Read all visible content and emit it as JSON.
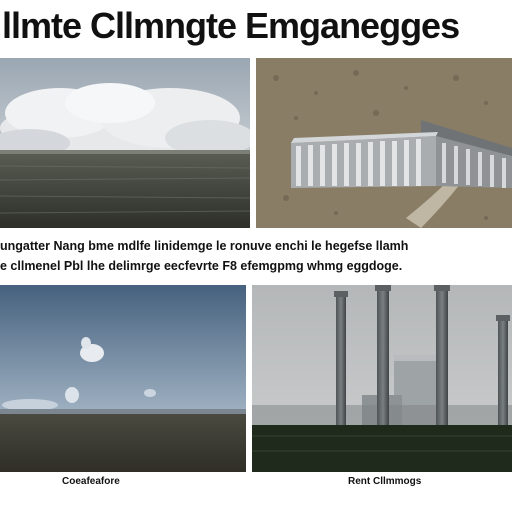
{
  "title": "llmte Cllmngte Emganegges",
  "captions": [
    "ungatter Nang bme mdlfe linidemge le ronuve enchi le hegefse llamh",
    "e cllmenel Pbl lhe delimrge eecfevrte F8 efemgpmg whmg eggdoge."
  ],
  "panels": [
    {
      "label": "",
      "icon": "clouds-over-sea-image"
    },
    {
      "label": "",
      "icon": "dam-structure-image"
    },
    {
      "label": "Coeafeafore",
      "icon": "open-sky-field-image"
    },
    {
      "label": "Rent Cllmmogs",
      "icon": "smokestacks-image"
    }
  ]
}
